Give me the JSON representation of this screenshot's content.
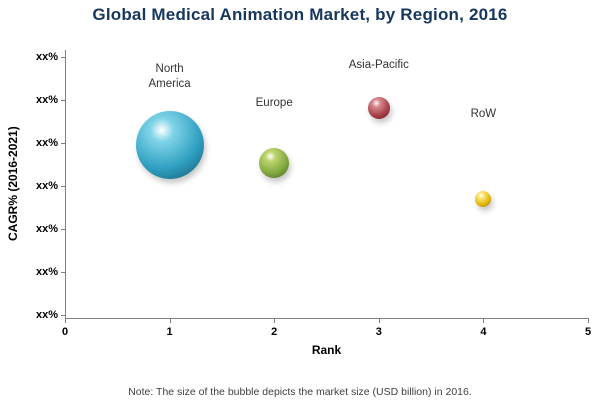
{
  "chart_data": {
    "type": "scatter",
    "subtype": "bubble",
    "title": "Global Medical Animation Market, by Region, 2016",
    "xlabel": "Rank",
    "ylabel": "CAGR% (2016-2021)",
    "xlim": [
      0,
      5
    ],
    "x_ticks": [
      "0",
      "1",
      "2",
      "3",
      "4",
      "5"
    ],
    "y_ticks": [
      "xx%",
      "xx%",
      "xx%",
      "xx%",
      "xx%",
      "xx%",
      "xx%"
    ],
    "grid": false,
    "legend": "none",
    "note": "Note: The size of the bubble depicts the market size (USD billion) in 2016.",
    "series": [
      {
        "name": "North America",
        "label": "North\nAmerica",
        "x": 1,
        "y_tick_units": 4.95,
        "y_value": "xx%",
        "radius": 34,
        "color": "#2f9fc0",
        "color_light": "#7fd4e8",
        "color_dark": "#14546b"
      },
      {
        "name": "Europe",
        "label": "Europe",
        "x": 2,
        "y_tick_units": 4.53,
        "y_value": "xx%",
        "radius": 15,
        "color": "#7fa73f",
        "color_light": "#bcd56c",
        "color_dark": "#44611c"
      },
      {
        "name": "Asia-Pacific",
        "label": "Asia-Pacific",
        "x": 3,
        "y_tick_units": 5.81,
        "y_value": "xx%",
        "radius": 11,
        "color": "#a63e48",
        "color_light": "#d98b90",
        "color_dark": "#5f1a21"
      },
      {
        "name": "RoW",
        "label": "RoW",
        "x": 4,
        "y_tick_units": 3.7,
        "y_value": "xx%",
        "radius": 8,
        "color": "#e3b505",
        "color_light": "#ffe680",
        "color_dark": "#8f7300"
      }
    ]
  }
}
